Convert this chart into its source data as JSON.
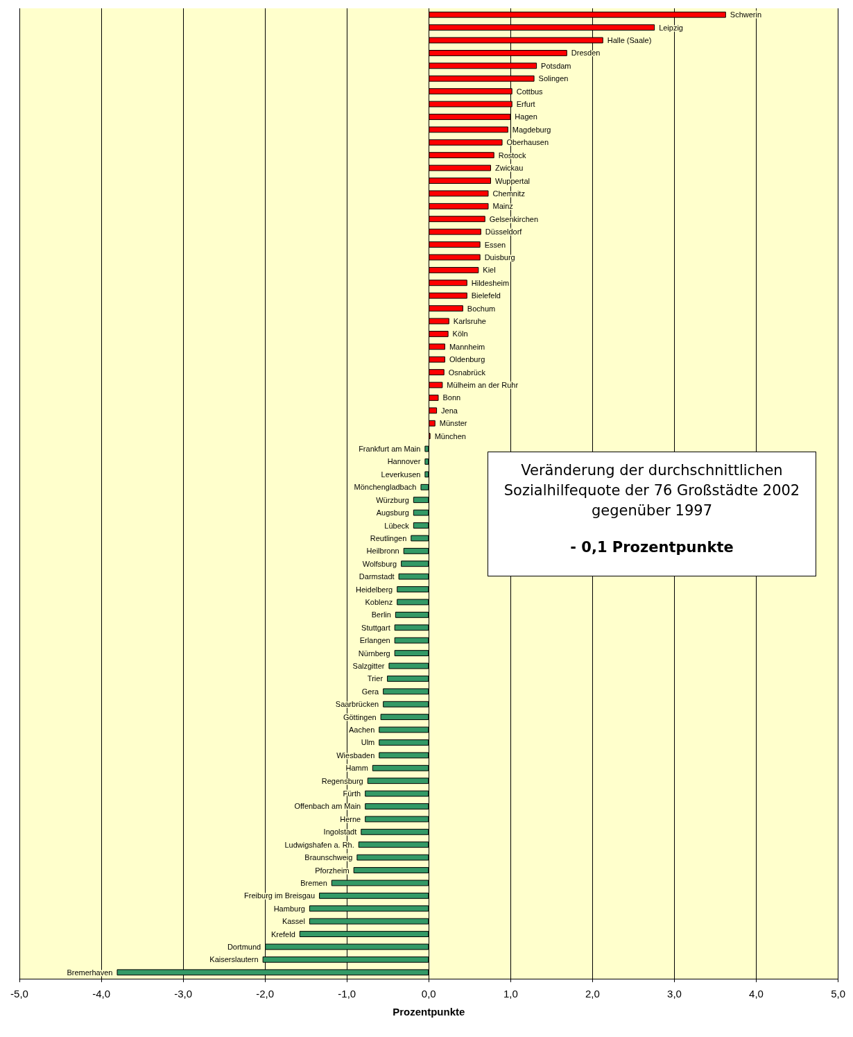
{
  "chart_data": {
    "type": "bar",
    "orientation": "horizontal",
    "xlabel": "Prozentpunkte",
    "categories": [
      "Schwerin",
      "Leipzig",
      "Halle (Saale)",
      "Dresden",
      "Potsdam",
      "Solingen",
      "Cottbus",
      "Erfurt",
      "Hagen",
      "Magdeburg",
      "Oberhausen",
      "Rostock",
      "Zwickau",
      "Wuppertal",
      "Chemnitz",
      "Mainz",
      "Gelsenkirchen",
      "Düsseldorf",
      "Essen",
      "Duisburg",
      "Kiel",
      "Hildesheim",
      "Bielefeld",
      "Bochum",
      "Karlsruhe",
      "Köln",
      "Mannheim",
      "Oldenburg",
      "Osnabrück",
      "Mülheim an der Ruhr",
      "Bonn",
      "Jena",
      "Münster",
      "München",
      "Frankfurt am Main",
      "Hannover",
      "Leverkusen",
      "Mönchengladbach",
      "Würzburg",
      "Augsburg",
      "Lübeck",
      "Reutlingen",
      "Heilbronn",
      "Wolfsburg",
      "Darmstadt",
      "Heidelberg",
      "Koblenz",
      "Berlin",
      "Stuttgart",
      "Erlangen",
      "Nürnberg",
      "Salzgitter",
      "Trier",
      "Gera",
      "Saarbrücken",
      "Göttingen",
      "Aachen",
      "Ulm",
      "Wiesbaden",
      "Hamm",
      "Regensburg",
      "Fürth",
      "Offenbach am Main",
      "Herne",
      "Ingolstadt",
      "Ludwigshafen a. Rh.",
      "Braunschweig",
      "Pforzheim",
      "Bremen",
      "Freiburg im Breisgau",
      "Hamburg",
      "Kassel",
      "Krefeld",
      "Dortmund",
      "Kaiserslautern",
      "Bremerhaven"
    ],
    "values": [
      3.63,
      2.76,
      2.13,
      1.69,
      1.32,
      1.29,
      1.02,
      1.02,
      1.0,
      0.97,
      0.9,
      0.8,
      0.76,
      0.76,
      0.73,
      0.73,
      0.69,
      0.64,
      0.63,
      0.63,
      0.61,
      0.47,
      0.47,
      0.42,
      0.25,
      0.24,
      0.2,
      0.2,
      0.19,
      0.17,
      0.12,
      0.1,
      0.08,
      0.02,
      -0.05,
      -0.05,
      -0.05,
      -0.1,
      -0.19,
      -0.19,
      -0.19,
      -0.22,
      -0.31,
      -0.34,
      -0.37,
      -0.39,
      -0.39,
      -0.41,
      -0.42,
      -0.42,
      -0.42,
      -0.49,
      -0.51,
      -0.56,
      -0.56,
      -0.59,
      -0.61,
      -0.61,
      -0.61,
      -0.69,
      -0.75,
      -0.78,
      -0.78,
      -0.78,
      -0.83,
      -0.86,
      -0.88,
      -0.92,
      -1.19,
      -1.34,
      -1.46,
      -1.46,
      -1.58,
      -2.0,
      -2.03,
      -3.81
    ],
    "colors": [
      "#ff0000",
      "#ff0000",
      "#ff0000",
      "#ff0000",
      "#ff0000",
      "#ff0000",
      "#ff0000",
      "#ff0000",
      "#ff0000",
      "#ff0000",
      "#ff0000",
      "#ff0000",
      "#ff0000",
      "#ff0000",
      "#ff0000",
      "#ff0000",
      "#ff0000",
      "#ff0000",
      "#ff0000",
      "#ff0000",
      "#ff0000",
      "#ff0000",
      "#ff0000",
      "#ff0000",
      "#ff0000",
      "#ff0000",
      "#ff0000",
      "#ff0000",
      "#ff0000",
      "#ff0000",
      "#ff0000",
      "#ff0000",
      "#ff0000",
      "#ff0000",
      "#339966",
      "#339966",
      "#339966",
      "#339966",
      "#339966",
      "#339966",
      "#339966",
      "#339966",
      "#339966",
      "#339966",
      "#339966",
      "#339966",
      "#339966",
      "#339966",
      "#339966",
      "#339966",
      "#339966",
      "#339966",
      "#339966",
      "#339966",
      "#339966",
      "#339966",
      "#339966",
      "#339966",
      "#339966",
      "#339966",
      "#339966",
      "#339966",
      "#339966",
      "#339966",
      "#339966",
      "#339966",
      "#339966",
      "#339966",
      "#339966",
      "#339966",
      "#339966",
      "#339966",
      "#339966",
      "#339966",
      "#339966",
      "#339966"
    ],
    "xlim": [
      -5,
      5
    ],
    "xticks": [
      {
        "value": -5,
        "label": "-5,0"
      },
      {
        "value": -4,
        "label": "-4,0"
      },
      {
        "value": -3,
        "label": "-3,0"
      },
      {
        "value": -2,
        "label": "-2,0"
      },
      {
        "value": -1,
        "label": "-1,0"
      },
      {
        "value": 0,
        "label": "0,0"
      },
      {
        "value": 1,
        "label": "1,0"
      },
      {
        "value": 2,
        "label": "2,0"
      },
      {
        "value": 3,
        "label": "3,0"
      },
      {
        "value": 4,
        "label": "4,0"
      },
      {
        "value": 5,
        "label": "5,0"
      }
    ],
    "grid": "x",
    "tick_labels": "x",
    "annotations": [
      "Veränderung der durchschnittlichen Sozialhilfequote der 76 Großstädte 2002 gegenüber 1997",
      "- 0,1 Prozentpunkte"
    ]
  }
}
